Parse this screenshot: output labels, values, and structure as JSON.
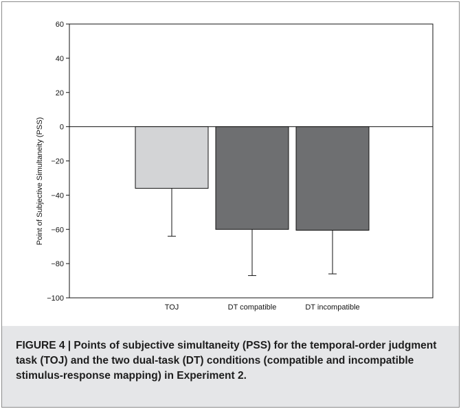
{
  "chart_data": {
    "type": "bar",
    "title": "",
    "xlabel": "",
    "ylabel": "Point of Subjective Simultaneity (PSS)",
    "ylim": [
      -100,
      60
    ],
    "yticks": [
      60,
      40,
      20,
      0,
      -20,
      -40,
      -60,
      -80,
      -100
    ],
    "ytick_labels": [
      "60",
      "40",
      "20",
      "0",
      "−20",
      "−40",
      "−60",
      "−80",
      "−100"
    ],
    "categories": [
      "TOJ",
      "DT compatible",
      "DT incompatible"
    ],
    "values": [
      -36,
      -60,
      -60.5
    ],
    "error_lower": [
      -64,
      -87,
      -86
    ],
    "bar_colors": [
      "#d3d4d6",
      "#6e6f71",
      "#6e6f71"
    ],
    "grid": false,
    "legend": "none"
  },
  "caption": {
    "text": "FIGURE 4 | Points of subjective simultaneity (PSS) for the temporal-order judgment task (TOJ) and the two dual-task (DT) conditions (compatible and incompatible stimulus-response mapping) in Experiment 2."
  }
}
